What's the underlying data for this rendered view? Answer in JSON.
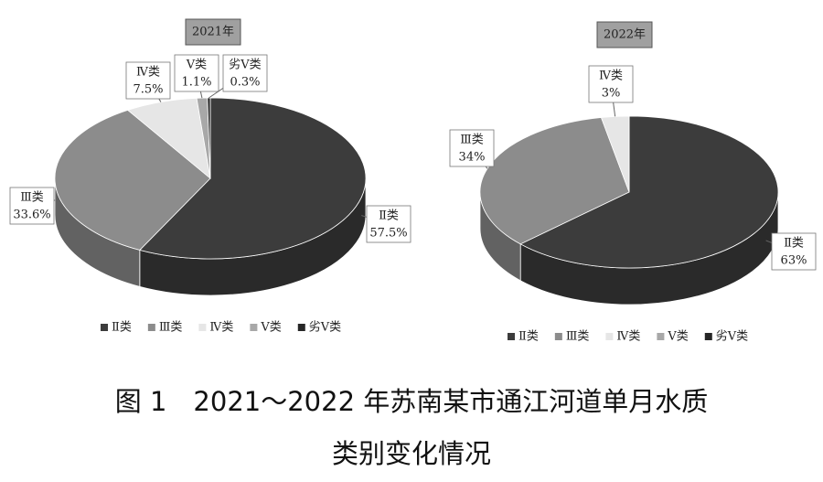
{
  "chart_data": [
    {
      "type": "pie",
      "title": "2021年",
      "categories": [
        "Ⅱ类",
        "Ⅲ类",
        "Ⅳ类",
        "Ⅴ类",
        "劣Ⅴ类"
      ],
      "values": [
        57.5,
        33.6,
        7.5,
        1.1,
        0.3
      ],
      "value_labels": [
        "57.5%",
        "33.6%",
        "7.5%",
        "1.1%",
        "0.3%"
      ],
      "colors": [
        "#3c3c3c",
        "#8c8c8c",
        "#e6e6e6",
        "#a8a8a8",
        "#262626"
      ],
      "legend": "bottom"
    },
    {
      "type": "pie",
      "title": "2022年",
      "categories": [
        "Ⅱ类",
        "Ⅲ类",
        "Ⅳ类",
        "Ⅴ类",
        "劣Ⅴ类"
      ],
      "values": [
        63,
        34,
        3,
        0,
        0
      ],
      "value_labels": [
        "63%",
        "34%",
        "3%",
        null,
        null
      ],
      "colors": [
        "#3c3c3c",
        "#8c8c8c",
        "#e6e6e6",
        "#a8a8a8",
        "#262626"
      ],
      "legend": "bottom"
    }
  ],
  "caption": [
    "图 1　2021～2022 年苏南某市通江河道单月水质",
    "类别变化情况"
  ]
}
